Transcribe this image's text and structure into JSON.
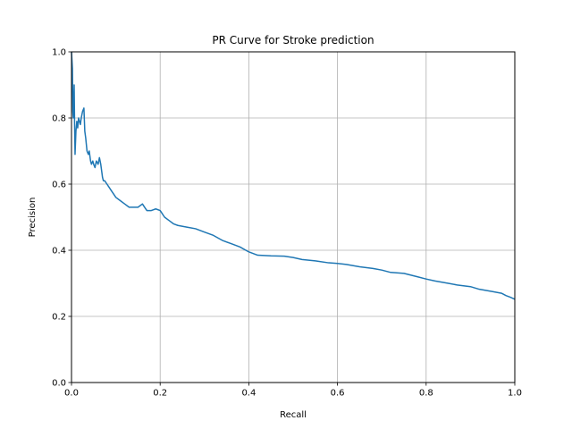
{
  "chart_data": {
    "type": "line",
    "title": "PR Curve for Stroke prediction",
    "xlabel": "Recall",
    "ylabel": "Precision",
    "xlim": [
      0,
      1
    ],
    "ylim": [
      0,
      1
    ],
    "grid": true,
    "x_ticks": [
      "0.0",
      "0.2",
      "0.4",
      "0.6",
      "0.8",
      "1.0"
    ],
    "y_ticks": [
      "0.0",
      "0.2",
      "0.4",
      "0.6",
      "0.8",
      "1.0"
    ],
    "line_color": "#1f77b4",
    "grid_color": "#b0b0b0",
    "series": [
      {
        "x": [
          0.0,
          0.002,
          0.003,
          0.004,
          0.005,
          0.006,
          0.007,
          0.008,
          0.01,
          0.012,
          0.014,
          0.016,
          0.018,
          0.02,
          0.022,
          0.025,
          0.028,
          0.03,
          0.032,
          0.035,
          0.038,
          0.04,
          0.043,
          0.045,
          0.048,
          0.05,
          0.053,
          0.056,
          0.06,
          0.063,
          0.066,
          0.068,
          0.07,
          0.072,
          0.075,
          0.08,
          0.085,
          0.09,
          0.095,
          0.1,
          0.11,
          0.12,
          0.13,
          0.14,
          0.15,
          0.16,
          0.165,
          0.17,
          0.18,
          0.19,
          0.2,
          0.21,
          0.22,
          0.23,
          0.24,
          0.26,
          0.28,
          0.3,
          0.32,
          0.34,
          0.36,
          0.38,
          0.4,
          0.42,
          0.45,
          0.48,
          0.5,
          0.52,
          0.55,
          0.58,
          0.6,
          0.62,
          0.65,
          0.68,
          0.7,
          0.72,
          0.75,
          0.78,
          0.8,
          0.82,
          0.85,
          0.87,
          0.9,
          0.92,
          0.95,
          0.97,
          0.98,
          0.99,
          1.0
        ],
        "y": [
          1.0,
          0.95,
          0.82,
          0.8,
          0.85,
          0.9,
          0.78,
          0.69,
          0.76,
          0.79,
          0.77,
          0.8,
          0.79,
          0.78,
          0.8,
          0.82,
          0.83,
          0.76,
          0.74,
          0.7,
          0.69,
          0.7,
          0.67,
          0.66,
          0.67,
          0.66,
          0.65,
          0.67,
          0.66,
          0.68,
          0.66,
          0.64,
          0.62,
          0.61,
          0.61,
          0.6,
          0.59,
          0.58,
          0.57,
          0.56,
          0.55,
          0.54,
          0.53,
          0.53,
          0.53,
          0.54,
          0.53,
          0.52,
          0.52,
          0.525,
          0.52,
          0.5,
          0.49,
          0.48,
          0.475,
          0.47,
          0.465,
          0.455,
          0.445,
          0.43,
          0.42,
          0.41,
          0.395,
          0.385,
          0.383,
          0.382,
          0.378,
          0.372,
          0.368,
          0.362,
          0.36,
          0.357,
          0.35,
          0.345,
          0.34,
          0.333,
          0.33,
          0.32,
          0.313,
          0.307,
          0.3,
          0.295,
          0.29,
          0.282,
          0.275,
          0.27,
          0.263,
          0.258,
          0.252
        ]
      }
    ]
  }
}
